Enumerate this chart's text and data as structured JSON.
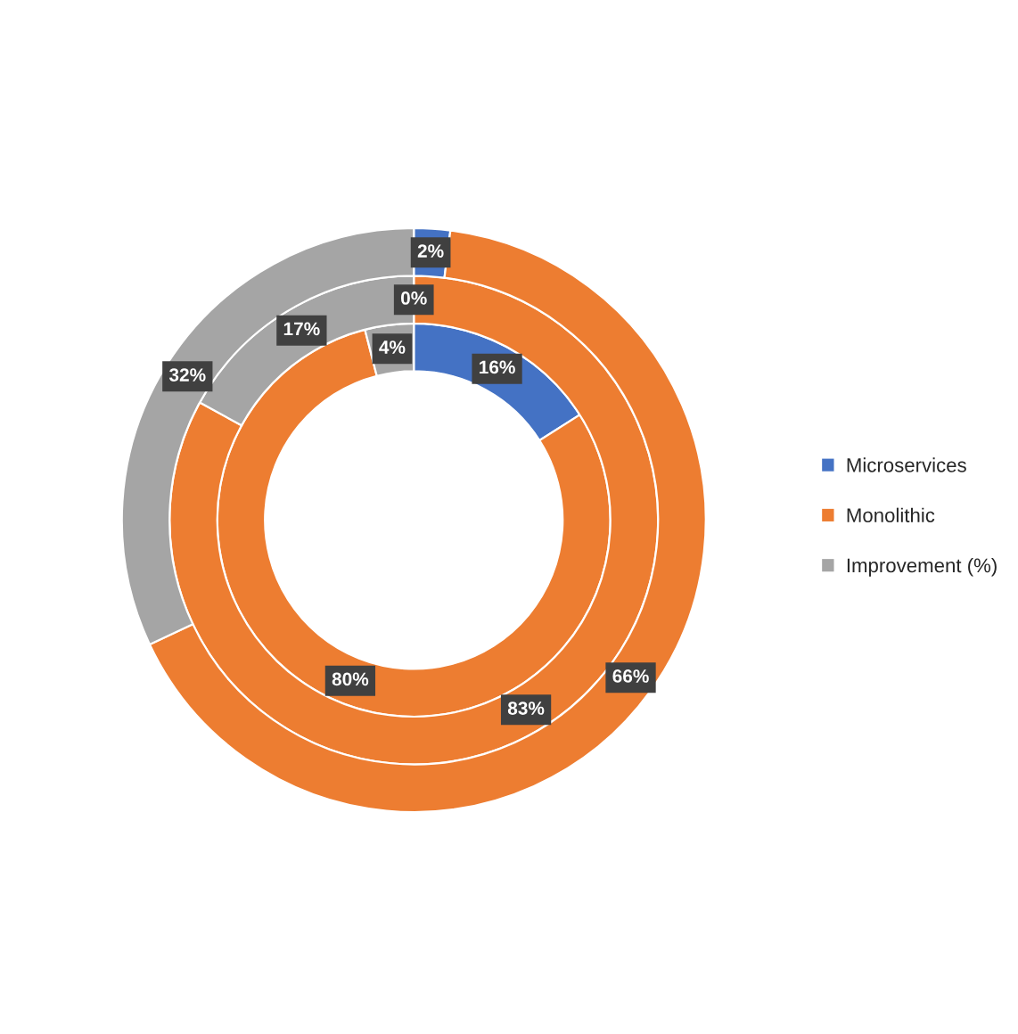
{
  "chart_data": {
    "type": "donut",
    "categories": [
      "Microservices",
      "Monolithic",
      "Improvement (%)"
    ],
    "colors": [
      "#4472c4",
      "#ed7d31",
      "#a5a5a5"
    ],
    "series": [
      {
        "values": [
          16,
          80,
          4
        ],
        "value_labels": [
          "16%",
          "80%",
          "4%"
        ]
      },
      {
        "values": [
          0,
          83,
          17
        ],
        "value_labels": [
          "0%",
          "83%",
          "17%"
        ]
      },
      {
        "values": [
          2,
          66,
          32
        ],
        "value_labels": [
          "2%",
          "66%",
          "32%"
        ]
      }
    ],
    "legend": "right"
  }
}
